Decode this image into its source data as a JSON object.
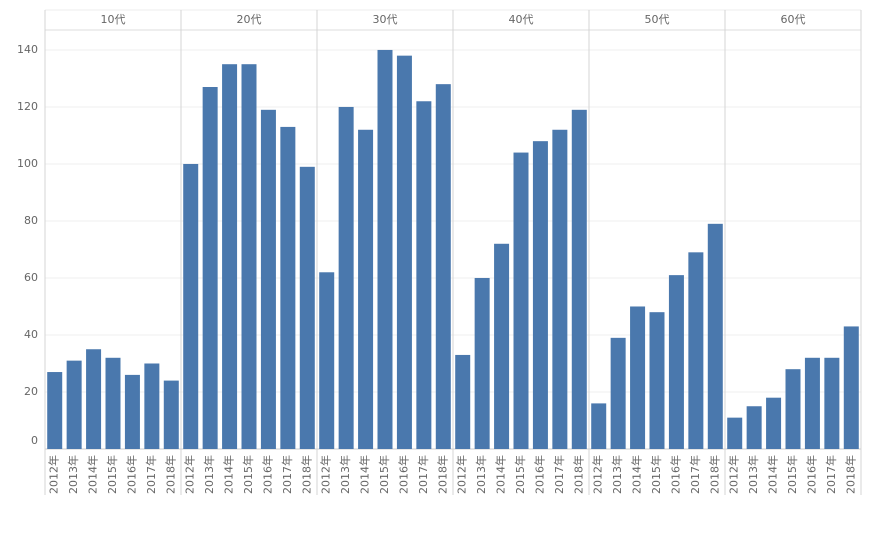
{
  "chart_data": {
    "type": "bar",
    "categories": [
      "2012年",
      "2013年",
      "2014年",
      "2015年",
      "2016年",
      "2017年",
      "2018年"
    ],
    "panels": [
      {
        "name": "10代",
        "values": [
          27,
          31,
          35,
          32,
          26,
          30,
          24
        ]
      },
      {
        "name": "20代",
        "values": [
          100,
          127,
          135,
          135,
          119,
          113,
          99
        ]
      },
      {
        "name": "30代",
        "values": [
          62,
          120,
          112,
          140,
          138,
          122,
          128
        ]
      },
      {
        "name": "40代",
        "values": [
          33,
          60,
          72,
          104,
          108,
          112,
          119
        ]
      },
      {
        "name": "50代",
        "values": [
          16,
          39,
          50,
          48,
          61,
          69,
          79
        ]
      },
      {
        "name": "60代",
        "values": [
          11,
          15,
          18,
          28,
          32,
          32,
          43
        ]
      }
    ],
    "color": "#4a78ad",
    "ylim": [
      0,
      147
    ],
    "yticks": [
      0,
      20,
      40,
      60,
      80,
      100,
      120,
      140
    ],
    "grid": true
  }
}
